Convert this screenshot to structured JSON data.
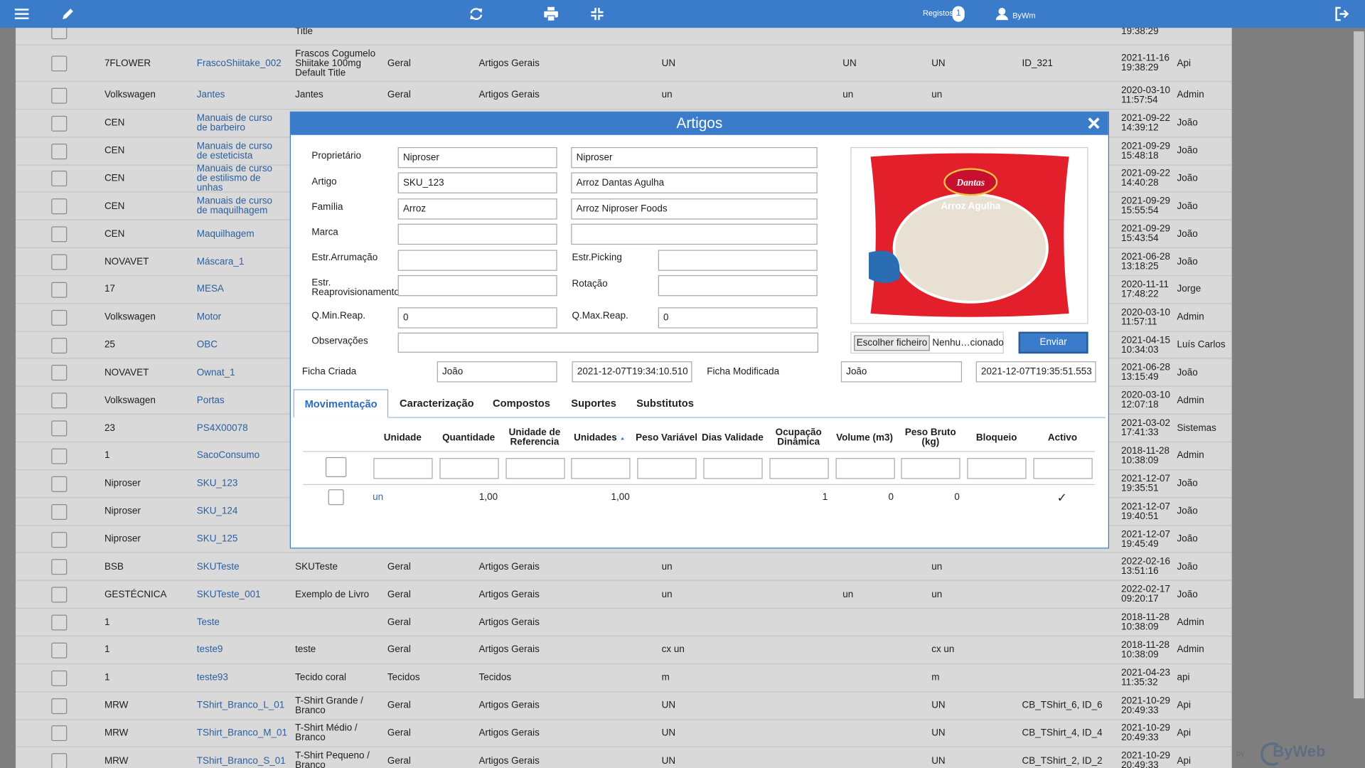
{
  "toolbar": {
    "records_label": "Registos",
    "records_count": "1",
    "user": "ByWm"
  },
  "list": {
    "rows": [
      [
        null,
        null,
        "Title",
        null,
        null,
        null,
        null,
        null,
        null,
        "19:38:29",
        null
      ],
      [
        "7FLOWER",
        "FrascoShiitake_002",
        "Frascos Cogumelo Shiitake 100mg Default Title",
        "Geral",
        "Artigos Gerais",
        "UN",
        "UN",
        "UN",
        "ID_321",
        "2021-11-16 19:38:29",
        "Api"
      ],
      [
        "Volkswagen",
        "Jantes",
        "Jantes",
        "Geral",
        "Artigos Gerais",
        "un",
        "un",
        "un",
        null,
        "2020-03-10 11:57:54",
        "Admin"
      ],
      [
        "CEN",
        "Manuais de curso de barbeiro",
        null,
        null,
        null,
        null,
        null,
        null,
        null,
        "2021-09-22 14:39:12",
        "João"
      ],
      [
        "CEN",
        "Manuais de curso de esteticista",
        null,
        null,
        null,
        null,
        null,
        null,
        null,
        "2021-09-29 15:48:18",
        "João"
      ],
      [
        "CEN",
        "Manuais de curso de estilismo de unhas",
        null,
        null,
        null,
        null,
        null,
        null,
        null,
        "2021-09-22 14:40:28",
        "João"
      ],
      [
        "CEN",
        "Manuais de curso de maquilhagem",
        null,
        null,
        null,
        null,
        null,
        null,
        null,
        "2021-09-29 15:55:54",
        "João"
      ],
      [
        "CEN",
        "Maquilhagem",
        null,
        null,
        null,
        null,
        null,
        null,
        null,
        "2021-09-29 15:43:54",
        "João"
      ],
      [
        "NOVAVET",
        "Máscara_1",
        null,
        null,
        null,
        null,
        null,
        null,
        null,
        "2021-06-28 13:18:25",
        "João"
      ],
      [
        "17",
        "MESA",
        null,
        null,
        null,
        null,
        null,
        null,
        null,
        "2020-11-11 17:48:22",
        "Jorge"
      ],
      [
        "Volkswagen",
        "Motor",
        null,
        null,
        null,
        null,
        null,
        null,
        null,
        "2020-03-10 11:57:11",
        "Admin"
      ],
      [
        "25",
        "OBC",
        null,
        null,
        null,
        null,
        null,
        null,
        null,
        "2021-04-15 10:34:03",
        "Luís Carlos"
      ],
      [
        "NOVAVET",
        "Ownat_1",
        null,
        null,
        null,
        null,
        null,
        null,
        null,
        "2021-06-28 13:15:49",
        "João"
      ],
      [
        "Volkswagen",
        "Portas",
        null,
        null,
        null,
        null,
        null,
        null,
        null,
        "2020-03-10 12:07:18",
        "Admin"
      ],
      [
        "23",
        "PS4X00078",
        null,
        null,
        null,
        null,
        null,
        null,
        null,
        "2021-03-02 17:41:33",
        "Sistemas"
      ],
      [
        "1",
        "SacoConsumo",
        null,
        null,
        null,
        null,
        null,
        null,
        null,
        "2018-11-28 10:38:09",
        "Admin"
      ],
      [
        "Niproser",
        "SKU_123",
        null,
        null,
        null,
        null,
        null,
        null,
        null,
        "2021-12-07 19:35:51",
        "João"
      ],
      [
        "Niproser",
        "SKU_124",
        null,
        null,
        null,
        null,
        null,
        null,
        null,
        "2021-12-07 19:40:51",
        "João"
      ],
      [
        "Niproser",
        "SKU_125",
        null,
        null,
        null,
        null,
        null,
        null,
        null,
        "2021-12-07 19:45:49",
        "João"
      ],
      [
        "BSB",
        "SKUTeste",
        "SKUTeste",
        "Geral",
        "Artigos Gerais",
        "un",
        null,
        "un",
        null,
        "2022-02-16 13:51:16",
        "João"
      ],
      [
        "GESTÉCNICA",
        "SKUTeste_001",
        "Exemplo de Livro",
        "Geral",
        "Artigos Gerais",
        "un",
        "un",
        "un",
        null,
        "2022-02-17 09:20:17",
        "João"
      ],
      [
        "1",
        "Teste",
        null,
        "Geral",
        "Artigos Gerais",
        null,
        null,
        null,
        null,
        "2018-11-28 10:38:09",
        "Admin"
      ],
      [
        "1",
        "teste9",
        "teste",
        "Geral",
        "Artigos Gerais",
        "cx un",
        null,
        "cx un",
        null,
        "2018-11-28 10:38:09",
        "Admin"
      ],
      [
        "1",
        "teste93",
        "Tecido coral",
        "Tecidos",
        "Tecidos",
        "m",
        null,
        "m",
        null,
        "2021-04-23 11:35:32",
        "api"
      ],
      [
        "MRW",
        "TShirt_Branco_L_01",
        "T-Shirt Grande / Branco",
        "Geral",
        "Artigos Gerais",
        "UN",
        null,
        "UN",
        "CB_TShirt_6, ID_6",
        "2021-10-29 20:49:33",
        "Api"
      ],
      [
        "MRW",
        "TShirt_Branco_M_01",
        "T-Shirt Médio / Branco",
        "Geral",
        "Artigos Gerais",
        "UN",
        null,
        "UN",
        "CB_TShirt_4, ID_4",
        "2021-10-29 20:49:33",
        "Api"
      ],
      [
        "MRW",
        "TShirt_Branco_S_01",
        "T-Shirt Pequeno / Branco",
        "Geral",
        "Artigos Gerais",
        "UN",
        null,
        "UN",
        "CB_TShirt_2, ID_2",
        "2021-10-29 20:49:33",
        "Api"
      ]
    ]
  },
  "footer": {
    "by": "by",
    "brand": "ByWeb"
  },
  "modal": {
    "title": "Artigos",
    "form": {
      "owner": {
        "label": "Proprietário",
        "code": "Niproser",
        "name": "Niproser"
      },
      "article": {
        "label": "Artigo",
        "code": "SKU_123",
        "name": "Arroz Dantas Agulha"
      },
      "family": {
        "label": "Família",
        "code": "Arroz",
        "name": "Arroz Niproser Foods"
      },
      "brand": {
        "label": "Marca"
      },
      "storage": {
        "label": "Estr.Arrumação"
      },
      "picking": {
        "label": "Estr.Picking"
      },
      "replenish": {
        "label": "Estr. Reaprovisionamento"
      },
      "rotation": {
        "label": "Rotação"
      },
      "min_reap": {
        "label": "Q.Min.Reap.",
        "value": "0"
      },
      "max_reap": {
        "label": "Q.Max.Reap.",
        "value": "0"
      },
      "notes": {
        "label": "Observações"
      }
    },
    "image": {
      "brand": "Dantas",
      "product": "Arroz Agulha"
    },
    "upload": {
      "choose": "Escolher ficheiro",
      "file": "Nenhu…cionado",
      "send": "Enviar"
    },
    "audit": {
      "created_label": "Ficha Criada",
      "created_by": "João",
      "created_at": "2021-12-07T19:34:10.510",
      "modified_label": "Ficha Modificada",
      "modified_by": "João",
      "modified_at": "2021-12-07T19:35:51.553"
    },
    "tabs": [
      "Movimentação",
      "Caracterização",
      "Compostos",
      "Suportes",
      "Substitutos"
    ],
    "active_tab": 0,
    "grid": {
      "columns": [
        "Unidade",
        "Quantidade",
        "Unidade de Referencia",
        "Unidades",
        "Peso Variável",
        "Dias Validade",
        "Ocupação Dinâmica",
        "Volume (m3)",
        "Peso Bruto (kg)",
        "Bloqueio",
        "Activo"
      ],
      "sort_column": 3,
      "rows": [
        [
          "un",
          "1,00",
          null,
          "1,00",
          null,
          null,
          "1",
          "0",
          "0",
          null,
          "✓"
        ]
      ]
    }
  }
}
